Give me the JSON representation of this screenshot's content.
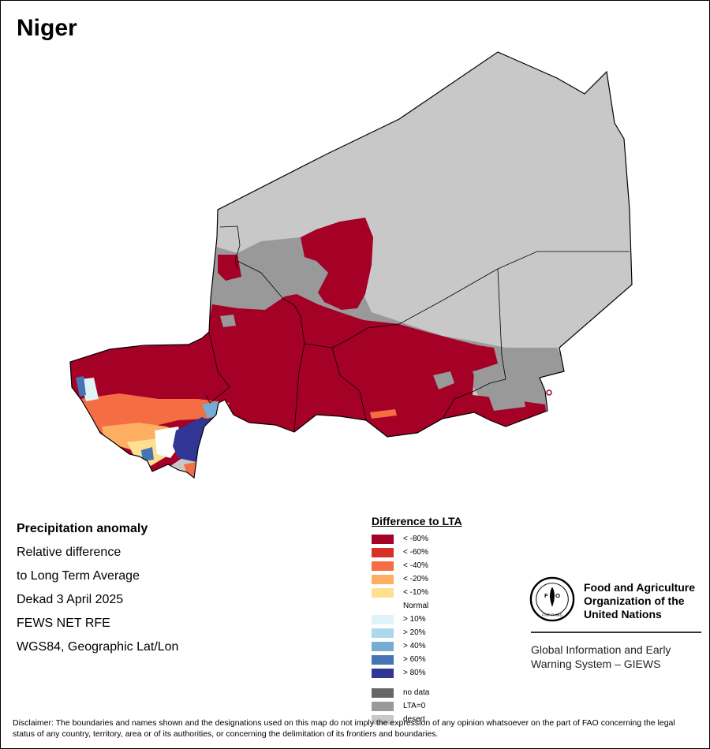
{
  "map_title": "Niger",
  "info": {
    "heading": "Precipitation anomaly",
    "lines": [
      "Relative difference",
      "to Long Term Average",
      "Dekad 3 April 2025",
      "FEWS NET RFE",
      "WGS84, Geographic Lat/Lon"
    ]
  },
  "legend": {
    "title": "Difference to LTA",
    "items": [
      {
        "label": "< -80%",
        "color": "#a50026"
      },
      {
        "label": "< -60%",
        "color": "#d73027"
      },
      {
        "label": "< -40%",
        "color": "#f46d43"
      },
      {
        "label": "< -20%",
        "color": "#fdae61"
      },
      {
        "label": "< -10%",
        "color": "#fee090"
      },
      {
        "label": "Normal",
        "color": "#ffffff"
      },
      {
        "label": "> 10%",
        "color": "#e0f3f8"
      },
      {
        "label": "> 20%",
        "color": "#abd9e9"
      },
      {
        "label": "> 40%",
        "color": "#74add1"
      },
      {
        "label": "> 60%",
        "color": "#4575b4"
      },
      {
        "label": "> 80%",
        "color": "#313695"
      }
    ],
    "extra_items": [
      {
        "label": "no data",
        "color": "#666666"
      },
      {
        "label": "LTA=0",
        "color": "#999999"
      },
      {
        "label": "desert",
        "color": "#c8c8c8"
      }
    ]
  },
  "organization": {
    "name": "Food and Agriculture Organization of the United Nations",
    "system": "Global Information and Early Warning System – GIEWS",
    "logo_letters": "FAO",
    "logo_motto": "FIAT PANIS"
  },
  "disclaimer": "Disclaimer: The boundaries and names shown and the designations used on this map do not imply the expression of any opinion whatsoever on the part of FAO concerning the legal status of any country, territory, area or of its authorities, or concerning the delimitation of its frontiers and boundaries."
}
